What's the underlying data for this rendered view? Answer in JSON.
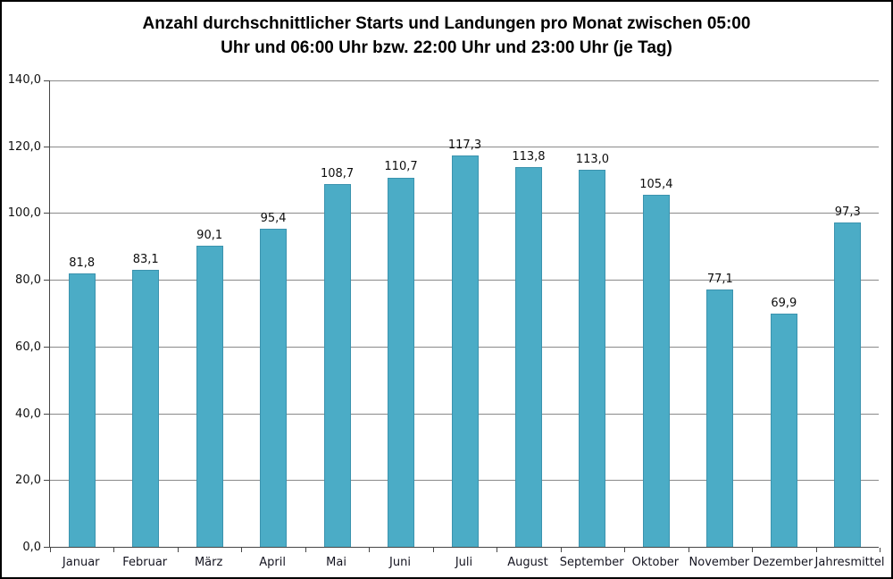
{
  "chart_data": {
    "type": "bar",
    "title": "Anzahl durchschnittlicher Starts und Landungen pro Monat zwischen 05:00 Uhr und 06:00 Uhr bzw. 22:00 Uhr und 23:00 Uhr (je Tag)",
    "title_lines": [
      "Anzahl durchschnittlicher Starts und Landungen pro Monat zwischen 05:00",
      "Uhr und 06:00 Uhr bzw. 22:00 Uhr und 23:00 Uhr (je Tag)"
    ],
    "categories": [
      "Januar",
      "Februar",
      "März",
      "April",
      "Mai",
      "Juni",
      "Juli",
      "August",
      "September",
      "Oktober",
      "November",
      "Dezember",
      "Jahresmittel"
    ],
    "values": [
      81.8,
      83.1,
      90.1,
      95.4,
      108.7,
      110.7,
      117.3,
      113.8,
      113.0,
      105.4,
      77.1,
      69.9,
      97.3
    ],
    "value_labels": [
      "81,8",
      "83,1",
      "90,1",
      "95,4",
      "108,7",
      "110,7",
      "117,3",
      "113,8",
      "113,0",
      "105,4",
      "77,1",
      "69,9",
      "97,3"
    ],
    "xlabel": "",
    "ylabel": "",
    "ylim": [
      0,
      140
    ],
    "ytick_step": 20,
    "ytick_labels": [
      "0,0",
      "20,0",
      "40,0",
      "60,0",
      "80,0",
      "100,0",
      "120,0",
      "140,0"
    ],
    "grid": true,
    "legend": "none",
    "colors": {
      "bar_fill": "#4BACC6",
      "bar_border": "#3b93ae",
      "gridline": "#8a8a8a",
      "axis_line": "#464646",
      "title_text": "#000000",
      "label_text": "#111111",
      "frame_border": "#000000",
      "background": "#ffffff"
    }
  }
}
